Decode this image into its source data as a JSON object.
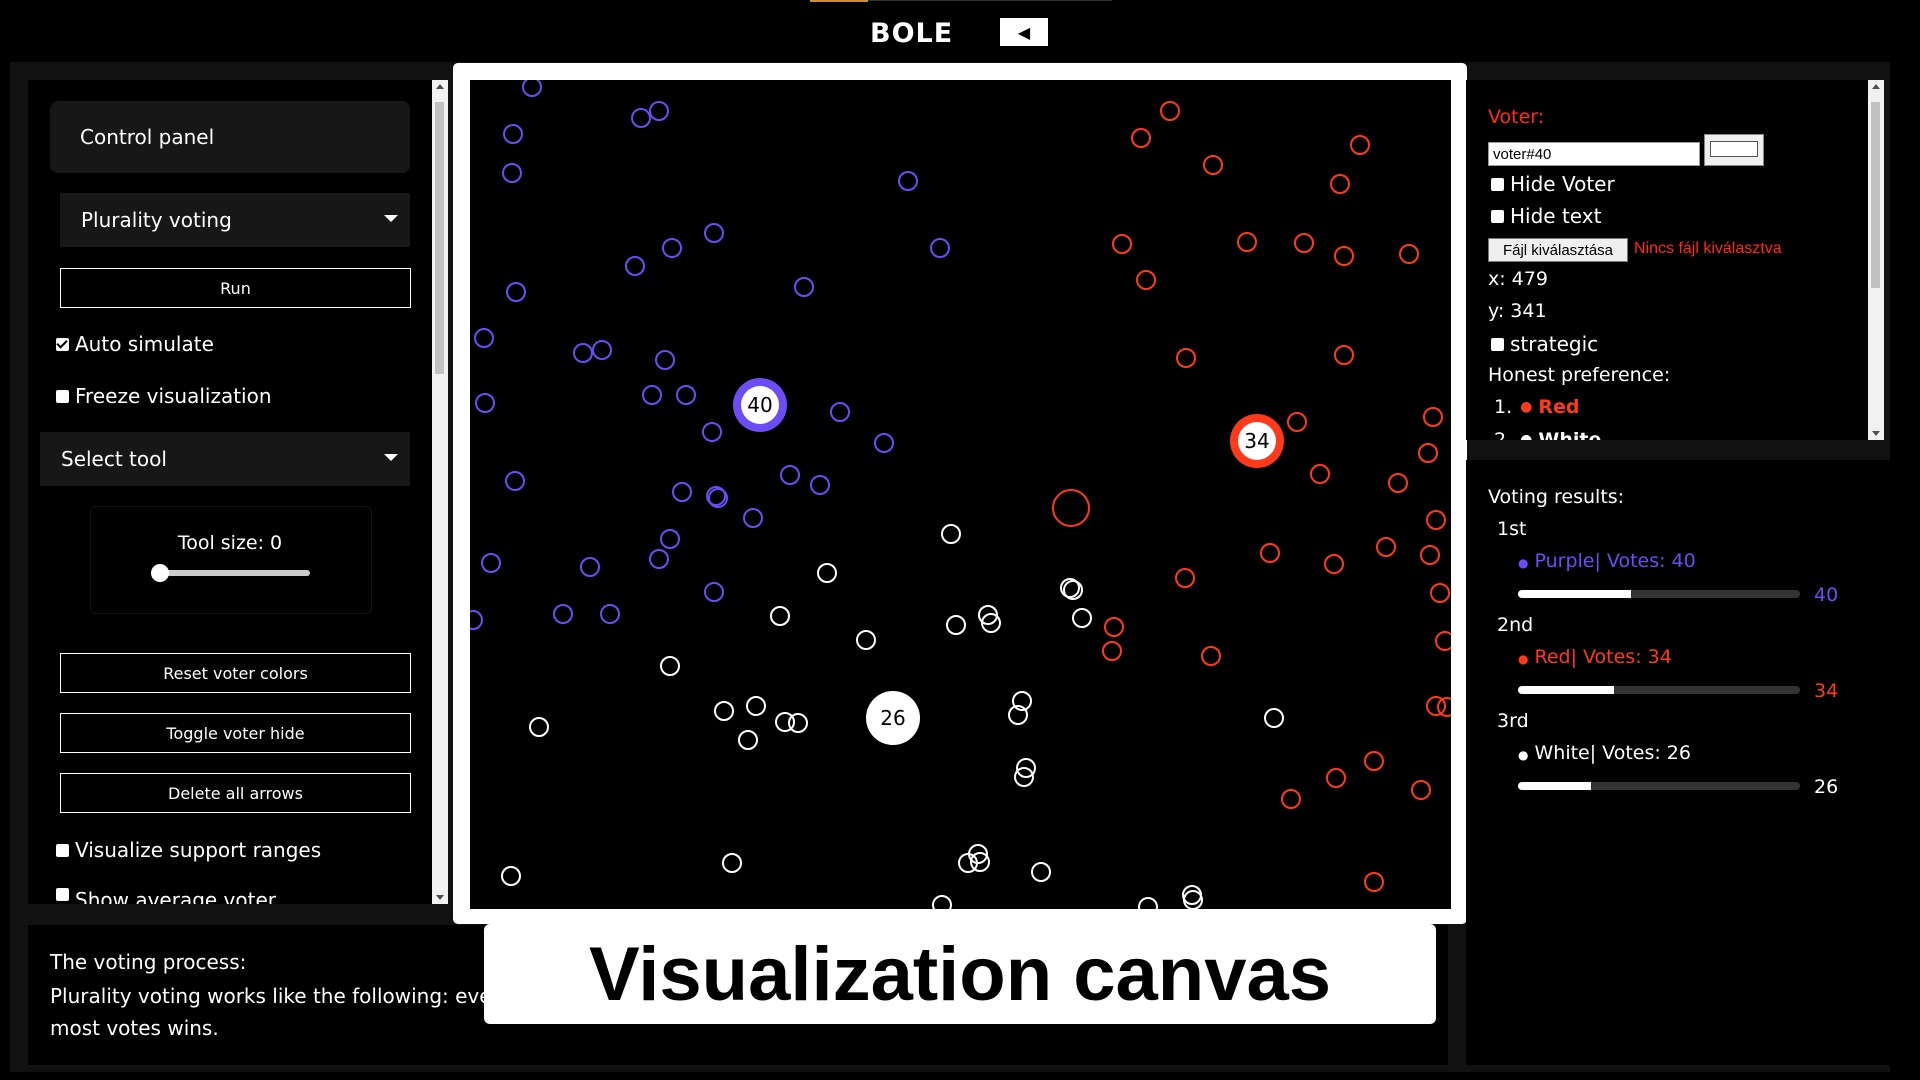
{
  "header": {
    "logo": "BOLE",
    "collapse_icon": "chevron-left-icon"
  },
  "control_panel": {
    "title": "Control panel",
    "method": "Plurality voting",
    "run_label": "Run",
    "auto_simulate": {
      "label": "Auto simulate",
      "checked": true
    },
    "freeze_visualization": {
      "label": "Freeze visualization",
      "checked": false
    },
    "tool_select": "Select tool",
    "tool_size": {
      "label": "Tool size: 0",
      "value": 0
    },
    "reset_label": "Reset voter colors",
    "toggle_label": "Toggle voter hide",
    "delete_label": "Delete all arrows",
    "visualize_support": {
      "label": "Visualize support ranges",
      "checked": false
    },
    "show_average": {
      "label": "Show average voter",
      "checked": false
    }
  },
  "canvas": {
    "caption": "Visualization canvas",
    "colors": {
      "purple": "#6b4cf5",
      "red": "#ff3a1a",
      "white": "#ffffff"
    },
    "candidates": [
      {
        "name": "Purple",
        "votes": 40
      },
      {
        "name": "Red",
        "votes": 34
      },
      {
        "name": "White",
        "votes": 26
      }
    ]
  },
  "description": {
    "title": "The voting process:",
    "text": "Plurality voting works like the following: eve",
    "text2": "most votes wins."
  },
  "voter": {
    "label": "Voter:",
    "name": "voter#40",
    "hide_voter": {
      "label": "Hide Voter",
      "checked": false
    },
    "hide_text": {
      "label": "Hide text",
      "checked": false
    },
    "file_button": "Fájl kiválasztása",
    "file_status": "Nincs fájl kiválasztva",
    "x": "x: 479",
    "y": "y: 341",
    "strategic": {
      "label": "strategic",
      "checked": false
    },
    "honest_label": "Honest preference:",
    "preferences": [
      {
        "rank": "1.",
        "name": "Red",
        "color": "#ff3a1a"
      },
      {
        "rank": "2.",
        "name": "White",
        "color": "#ffffff"
      }
    ]
  },
  "results": {
    "title": "Voting results:",
    "entries": [
      {
        "place": "1st",
        "label": "Purple| Votes: 40",
        "votes": 40,
        "color": "#6b4cf5",
        "fraction": 0.4
      },
      {
        "place": "2nd",
        "label": "Red| Votes: 34",
        "votes": 34,
        "color": "#ff3a1a",
        "fraction": 0.34
      },
      {
        "place": "3rd",
        "label": "White| Votes: 26",
        "votes": 26,
        "color": "#ffffff",
        "fraction": 0.26
      }
    ]
  }
}
